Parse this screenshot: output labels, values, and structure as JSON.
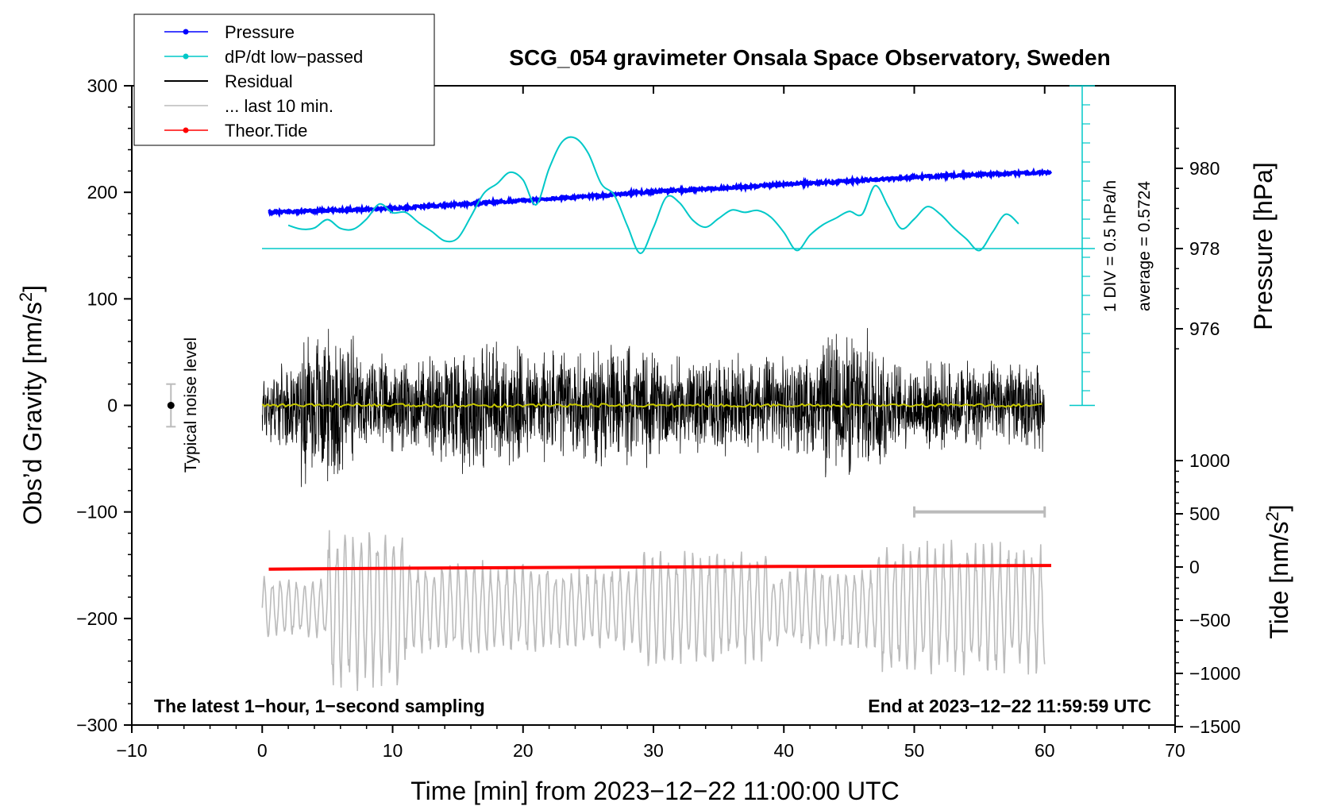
{
  "chart_data": {
    "type": "line",
    "title": "SCG_054 gravimeter Onsala Space Observatory, Sweden",
    "xlabel": "Time [min] from 2023−12−22 11:00:00 UTC",
    "ylabel_left_main": "Obs’d Gravity [nm/s",
    "ylabel_left_sup": "2",
    "ylabel_left_close": "]",
    "ylabel_right_top": "Pressure [hPa]",
    "ylabel_right_bottom_main": "Tide [nm/s",
    "ylabel_right_bottom_sup": "2",
    "ylabel_right_bottom_close": "]",
    "xlim": [
      -10,
      70
    ],
    "ylim_left": [
      -300,
      300
    ],
    "pressure_axis": {
      "ticks": [
        976,
        978,
        980
      ]
    },
    "tide_axis": {
      "ticks": [
        -1500,
        -1000,
        -500,
        0,
        500,
        1000
      ]
    },
    "x_ticks": [
      -10,
      0,
      10,
      20,
      30,
      40,
      50,
      60,
      70
    ],
    "y_ticks": [
      -300,
      -200,
      -100,
      0,
      100,
      200,
      300
    ],
    "legend": {
      "placement": "top-left",
      "entries": [
        {
          "label": "Pressure",
          "color": "#0000ff",
          "marker": true
        },
        {
          "label": "dP/dt low−passed",
          "color": "#00c8c8",
          "marker": true
        },
        {
          "label": "Residual",
          "color": "#000000",
          "marker": false
        },
        {
          "label": "... last 10 min.",
          "color": "#bbbbbb",
          "marker": false
        },
        {
          "label": "Theor.Tide",
          "color": "#ff0000",
          "marker": true
        }
      ]
    },
    "annotations": {
      "noise_label": "Typical noise level",
      "dpdt_scale": "1 DIV = 0.5 hPa/h",
      "dpdt_average": "average = 0.5724",
      "bottom_left": "The latest 1−hour, 1−second sampling",
      "bottom_right": "End at 2023−12−22 11:59:59 UTC"
    },
    "series": [
      {
        "name": "Pressure",
        "axis": "pressure",
        "color": "#0000ff",
        "x": [
          0.5,
          5,
          10,
          15,
          20,
          25,
          30,
          35,
          40,
          45,
          50,
          55,
          60.5
        ],
        "values": [
          978.9,
          978.95,
          979.0,
          979.1,
          979.2,
          979.3,
          979.42,
          979.5,
          979.6,
          979.68,
          979.78,
          979.85,
          979.9
        ]
      },
      {
        "name": "dP/dt low−passed",
        "axis": "dpdt",
        "color": "#00c8c8",
        "baseline_pressure": 978,
        "x": [
          2,
          3,
          4,
          5,
          6,
          7,
          8,
          9,
          10,
          11,
          12,
          13,
          14,
          15,
          16,
          17,
          18,
          19,
          20,
          21,
          22,
          23,
          24,
          25,
          26,
          27,
          28,
          29,
          30,
          31,
          32,
          33,
          34,
          35,
          36,
          37,
          38,
          39,
          40,
          41,
          42,
          43,
          44,
          45,
          46,
          47,
          48,
          49,
          50,
          51,
          52,
          53,
          54,
          55,
          56,
          57,
          58
        ],
        "values": [
          1.22,
          1.02,
          1.08,
          1.52,
          1.06,
          1.02,
          1.55,
          2.34,
          1.88,
          1.9,
          1.36,
          0.9,
          0.4,
          0.55,
          1.68,
          2.9,
          3.4,
          4.0,
          3.6,
          2.3,
          4.2,
          5.6,
          5.8,
          5.0,
          3.4,
          2.8,
          1.2,
          -0.25,
          1.1,
          2.7,
          2.4,
          1.5,
          1.12,
          1.58,
          2.02,
          1.9,
          2.0,
          1.65,
          0.85,
          -0.1,
          0.7,
          1.25,
          1.6,
          1.95,
          1.8,
          3.3,
          2.2,
          1.05,
          1.55,
          2.2,
          1.8,
          1.1,
          0.5,
          -0.1,
          0.85,
          1.8,
          1.3
        ]
      },
      {
        "name": "Residual",
        "axis": "gravity",
        "color": "#000000",
        "x_range": [
          0,
          60
        ],
        "envelope_segments": [
          {
            "x0": 0,
            "x1": 3,
            "amplitude": 40
          },
          {
            "x0": 3,
            "x1": 7,
            "amplitude": 80
          },
          {
            "x0": 7,
            "x1": 13,
            "amplitude": 50
          },
          {
            "x0": 13,
            "x1": 18,
            "amplitude": 70
          },
          {
            "x0": 18,
            "x1": 30,
            "amplitude": 60
          },
          {
            "x0": 30,
            "x1": 43,
            "amplitude": 50
          },
          {
            "x0": 43,
            "x1": 48,
            "amplitude": 75
          },
          {
            "x0": 48,
            "x1": 60,
            "amplitude": 45
          }
        ]
      },
      {
        "name": "Residual mean",
        "axis": "gravity",
        "color": "#c8c800",
        "x": [
          0,
          60
        ],
        "values": [
          0,
          0
        ]
      },
      {
        "name": "... last 10 min.",
        "axis": "gravity",
        "color": "#bbbbbb",
        "x_range": [
          0,
          60
        ],
        "center": -190,
        "envelope_segments": [
          {
            "x0": 0,
            "x1": 5,
            "amplitude": 30
          },
          {
            "x0": 5,
            "x1": 11,
            "amplitude": 80
          },
          {
            "x0": 11,
            "x1": 21,
            "amplitude": 45
          },
          {
            "x0": 21,
            "x1": 29,
            "amplitude": 40
          },
          {
            "x0": 29,
            "x1": 39,
            "amplitude": 55
          },
          {
            "x0": 39,
            "x1": 47,
            "amplitude": 40
          },
          {
            "x0": 47,
            "x1": 60,
            "amplitude": 65
          }
        ]
      },
      {
        "name": "Theor.Tide",
        "axis": "tide",
        "color": "#ff0000",
        "x": [
          0.5,
          10,
          20,
          30,
          40,
          50,
          60.5
        ],
        "values": [
          -20,
          -12,
          -5,
          0,
          5,
          10,
          14
        ]
      }
    ],
    "noise_bar": {
      "x": -7,
      "center": 0,
      "half_range": 20
    },
    "last10_bracket": {
      "x": [
        50,
        60
      ],
      "y": -100
    }
  }
}
